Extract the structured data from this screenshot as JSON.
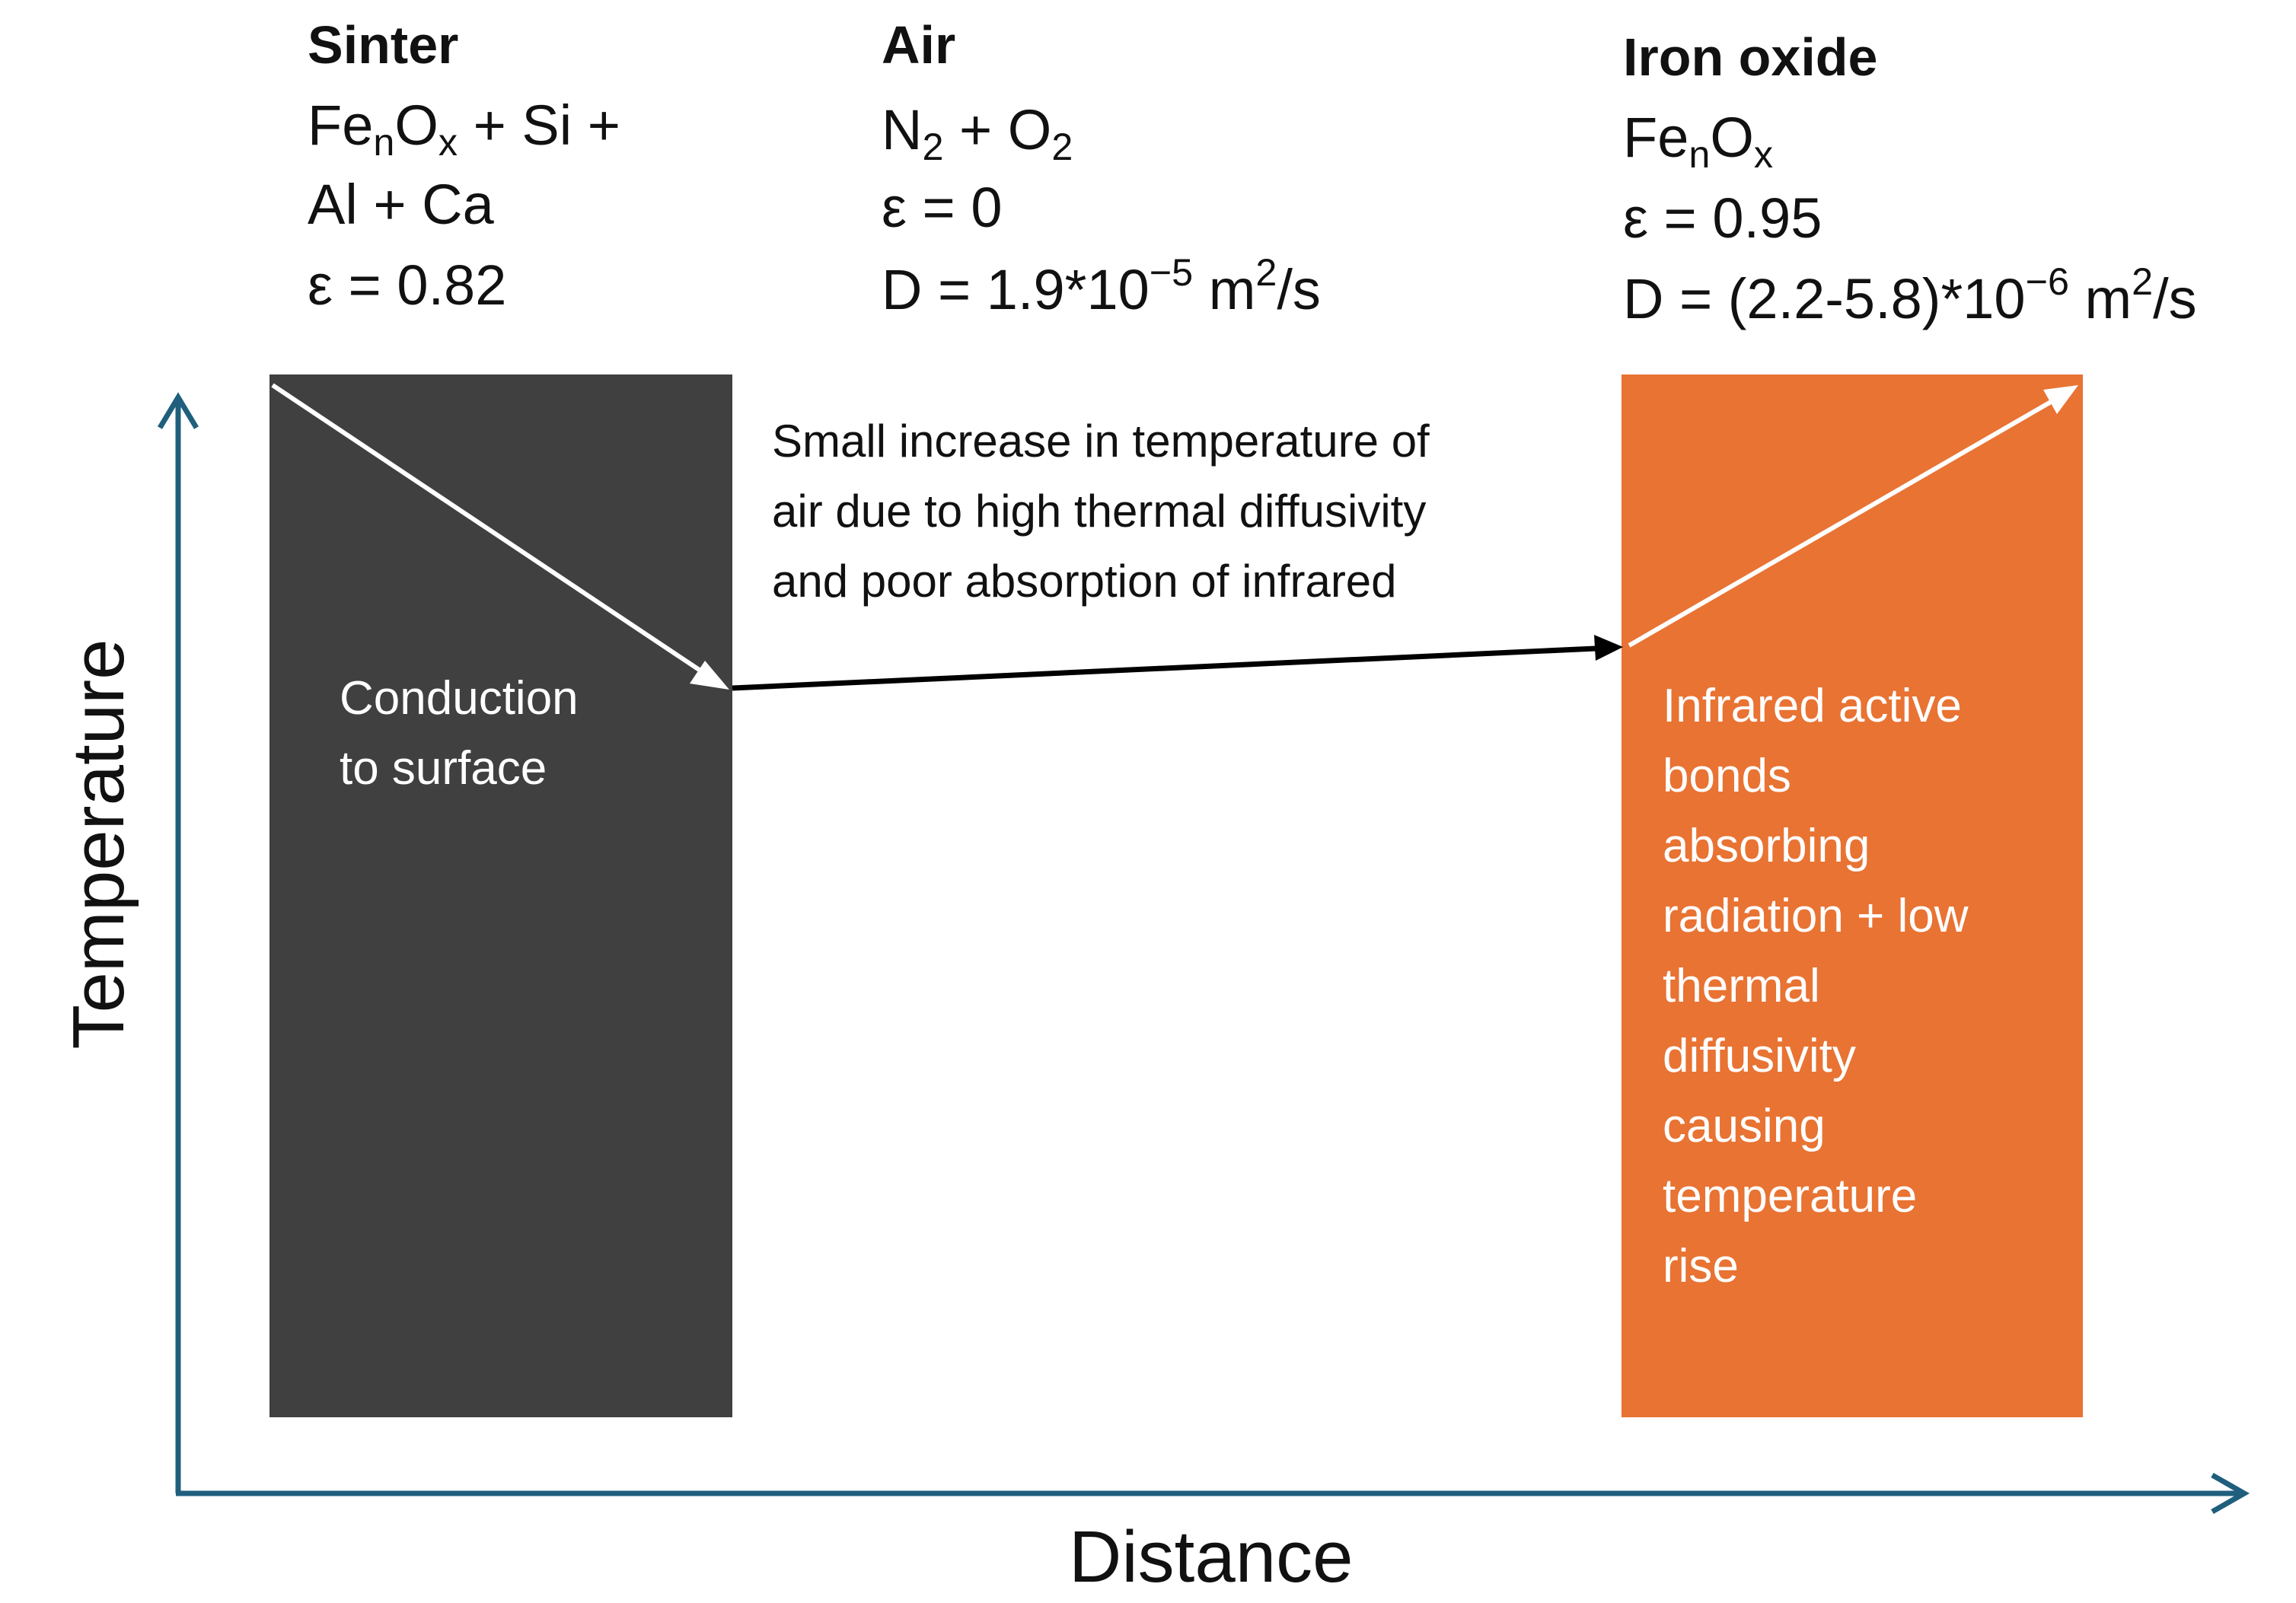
{
  "sinter": {
    "heading": "Sinter",
    "formula": {
      "a": "Fe",
      "a_sub": "n",
      "b": "O",
      "b_sub": "x",
      "rest": " + Si +",
      "line2": "Al + Ca"
    },
    "emissivity": "ε = 0.82",
    "block_note": [
      "Conduction",
      "to surface"
    ]
  },
  "air": {
    "heading": "Air",
    "formula": {
      "a": "N",
      "a_sub": "2",
      "b": " + O",
      "b_sub": "2"
    },
    "emissivity": "ε = 0",
    "diffusivity": {
      "prefix": "D =  1.9*10",
      "exp": "−5",
      "unit": "  m",
      "unit_sup": "2",
      "unit_tail": "/s"
    },
    "annotation": [
      "Small increase in temperature of",
      "air  due to high thermal diffusivity",
      "and poor absorption of infrared"
    ]
  },
  "iron_oxide": {
    "heading": "Iron oxide",
    "formula": {
      "a": "Fe",
      "a_sub": "n",
      "b": "O",
      "b_sub": "x"
    },
    "emissivity": "ε = 0.95",
    "diffusivity": {
      "prefix": "D =  (2.2-5.8)*10",
      "exp": "−6",
      "unit": "  m",
      "unit_sup": "2",
      "unit_tail": "/s"
    },
    "block_note": [
      "Infrared active",
      "bonds",
      "absorbing",
      "radiation + low",
      "thermal",
      "diffusivity",
      "causing",
      "temperature",
      "rise"
    ]
  },
  "axes": {
    "x_label": "Distance",
    "y_label": "Temperature"
  },
  "colors": {
    "sinter_block": "#404040",
    "iron_oxide_block": "#e87333",
    "axis": "#1f5f7d"
  }
}
